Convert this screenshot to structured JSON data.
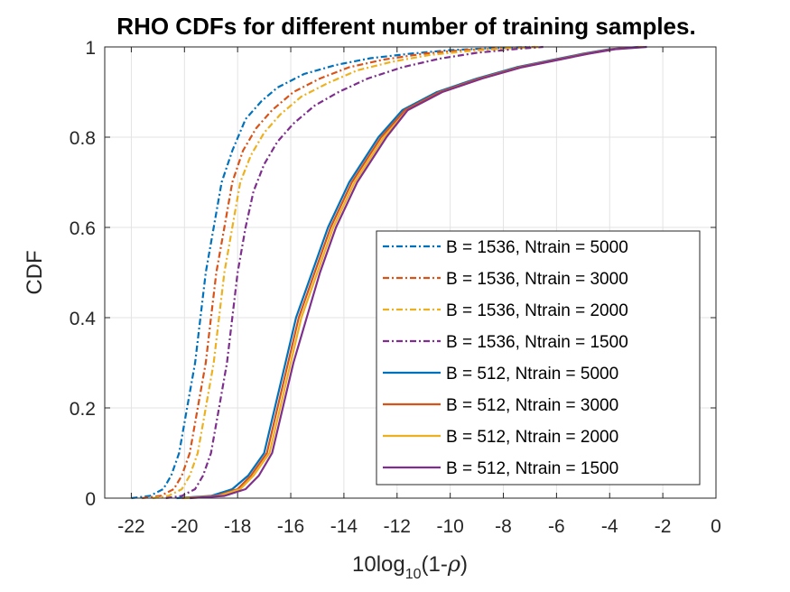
{
  "chart_data": {
    "type": "line",
    "title": "RHO CDFs for different number of training samples.",
    "xlabel": {
      "main": "10log",
      "sub": "10",
      "rest": "(1-",
      "rho": "ρ",
      "close": ")"
    },
    "ylabel": "CDF",
    "xlim": [
      -23,
      0
    ],
    "ylim": [
      0,
      1
    ],
    "xticks": [
      -22,
      -20,
      -18,
      -16,
      -14,
      -12,
      -10,
      -8,
      -6,
      -4,
      -2,
      0
    ],
    "xtick_labels": [
      "-22",
      "-20",
      "-18",
      "-16",
      "-14",
      "-12",
      "-10",
      "-8",
      "-6",
      "-4",
      "-2",
      "0"
    ],
    "yticks": [
      0,
      0.2,
      0.4,
      0.6,
      0.8,
      1
    ],
    "ytick_labels": [
      "0",
      "0.2",
      "0.4",
      "0.6",
      "0.8",
      "1"
    ],
    "grid": true,
    "legend_position": "bottom-right",
    "series": [
      {
        "name": "B = 1536, Ntrain = 5000",
        "color": "#0072BD",
        "dash": "dashdot",
        "points": [
          [
            -22.0,
            0
          ],
          [
            -21.3,
            0.005
          ],
          [
            -20.8,
            0.02
          ],
          [
            -20.5,
            0.05
          ],
          [
            -20.2,
            0.1
          ],
          [
            -19.9,
            0.2
          ],
          [
            -19.6,
            0.3
          ],
          [
            -19.4,
            0.4
          ],
          [
            -19.2,
            0.5
          ],
          [
            -18.9,
            0.6
          ],
          [
            -18.6,
            0.7
          ],
          [
            -18.2,
            0.77
          ],
          [
            -17.7,
            0.84
          ],
          [
            -17.1,
            0.88
          ],
          [
            -16.5,
            0.91
          ],
          [
            -15.5,
            0.94
          ],
          [
            -14.3,
            0.96
          ],
          [
            -13.0,
            0.975
          ],
          [
            -11.5,
            0.985
          ],
          [
            -10.0,
            0.993
          ],
          [
            -8.5,
            0.997
          ],
          [
            -7.0,
            1.0
          ]
        ]
      },
      {
        "name": "B = 1536, Ntrain = 3000",
        "color": "#D95319",
        "dash": "dashdot",
        "points": [
          [
            -21.6,
            0
          ],
          [
            -20.9,
            0.005
          ],
          [
            -20.4,
            0.02
          ],
          [
            -20.1,
            0.05
          ],
          [
            -19.8,
            0.1
          ],
          [
            -19.5,
            0.2
          ],
          [
            -19.2,
            0.3
          ],
          [
            -19.0,
            0.4
          ],
          [
            -18.8,
            0.5
          ],
          [
            -18.5,
            0.6
          ],
          [
            -18.2,
            0.7
          ],
          [
            -17.8,
            0.77
          ],
          [
            -17.3,
            0.82
          ],
          [
            -16.7,
            0.86
          ],
          [
            -15.9,
            0.9
          ],
          [
            -14.9,
            0.93
          ],
          [
            -13.8,
            0.955
          ],
          [
            -12.5,
            0.972
          ],
          [
            -11.0,
            0.985
          ],
          [
            -9.5,
            0.993
          ],
          [
            -8.0,
            0.997
          ],
          [
            -6.8,
            1.0
          ]
        ]
      },
      {
        "name": "B = 1536, Ntrain = 2000",
        "color": "#EDB120",
        "dash": "dashdot",
        "points": [
          [
            -21.2,
            0
          ],
          [
            -20.6,
            0.005
          ],
          [
            -20.1,
            0.02
          ],
          [
            -19.8,
            0.05
          ],
          [
            -19.5,
            0.1
          ],
          [
            -19.2,
            0.2
          ],
          [
            -18.9,
            0.3
          ],
          [
            -18.7,
            0.4
          ],
          [
            -18.5,
            0.5
          ],
          [
            -18.2,
            0.6
          ],
          [
            -17.9,
            0.7
          ],
          [
            -17.5,
            0.76
          ],
          [
            -17.0,
            0.81
          ],
          [
            -16.4,
            0.85
          ],
          [
            -15.6,
            0.89
          ],
          [
            -14.6,
            0.92
          ],
          [
            -13.5,
            0.948
          ],
          [
            -12.2,
            0.967
          ],
          [
            -10.8,
            0.982
          ],
          [
            -9.3,
            0.991
          ],
          [
            -7.8,
            0.997
          ],
          [
            -6.6,
            1.0
          ]
        ]
      },
      {
        "name": "B = 1536, Ntrain = 1500",
        "color": "#7E2F8E",
        "dash": "dashdot",
        "points": [
          [
            -20.7,
            0
          ],
          [
            -20.1,
            0.005
          ],
          [
            -19.6,
            0.02
          ],
          [
            -19.3,
            0.05
          ],
          [
            -19.0,
            0.1
          ],
          [
            -18.7,
            0.2
          ],
          [
            -18.4,
            0.3
          ],
          [
            -18.2,
            0.4
          ],
          [
            -18.0,
            0.5
          ],
          [
            -17.7,
            0.6
          ],
          [
            -17.4,
            0.68
          ],
          [
            -17.0,
            0.74
          ],
          [
            -16.5,
            0.79
          ],
          [
            -15.9,
            0.83
          ],
          [
            -15.1,
            0.87
          ],
          [
            -14.2,
            0.9
          ],
          [
            -13.1,
            0.93
          ],
          [
            -11.8,
            0.955
          ],
          [
            -10.4,
            0.974
          ],
          [
            -9.0,
            0.987
          ],
          [
            -7.6,
            0.995
          ],
          [
            -6.5,
            1.0
          ]
        ]
      },
      {
        "name": "B = 512, Ntrain = 5000",
        "color": "#0072BD",
        "dash": "solid",
        "points": [
          [
            -20.3,
            0
          ],
          [
            -19.0,
            0.005
          ],
          [
            -18.2,
            0.02
          ],
          [
            -17.6,
            0.05
          ],
          [
            -17.0,
            0.1
          ],
          [
            -16.6,
            0.2
          ],
          [
            -16.2,
            0.3
          ],
          [
            -15.8,
            0.4
          ],
          [
            -15.2,
            0.5
          ],
          [
            -14.6,
            0.6
          ],
          [
            -13.8,
            0.7
          ],
          [
            -12.7,
            0.8
          ],
          [
            -11.8,
            0.86
          ],
          [
            -10.5,
            0.9
          ],
          [
            -9.0,
            0.93
          ],
          [
            -7.5,
            0.955
          ],
          [
            -6.0,
            0.973
          ],
          [
            -5.0,
            0.985
          ],
          [
            -4.0,
            0.995
          ],
          [
            -2.9,
            1.0
          ]
        ]
      },
      {
        "name": "B = 512, Ntrain = 3000",
        "color": "#D95319",
        "dash": "solid",
        "points": [
          [
            -20.1,
            0
          ],
          [
            -18.8,
            0.005
          ],
          [
            -18.0,
            0.02
          ],
          [
            -17.5,
            0.05
          ],
          [
            -16.9,
            0.1
          ],
          [
            -16.5,
            0.2
          ],
          [
            -16.1,
            0.3
          ],
          [
            -15.7,
            0.4
          ],
          [
            -15.1,
            0.5
          ],
          [
            -14.5,
            0.6
          ],
          [
            -13.7,
            0.7
          ],
          [
            -12.6,
            0.8
          ],
          [
            -11.7,
            0.86
          ],
          [
            -10.4,
            0.9
          ],
          [
            -8.9,
            0.93
          ],
          [
            -7.4,
            0.955
          ],
          [
            -5.9,
            0.973
          ],
          [
            -4.9,
            0.985
          ],
          [
            -3.9,
            0.995
          ],
          [
            -2.8,
            1.0
          ]
        ]
      },
      {
        "name": "B = 512, Ntrain = 2000",
        "color": "#EDB120",
        "dash": "solid",
        "points": [
          [
            -20.0,
            0
          ],
          [
            -18.7,
            0.005
          ],
          [
            -17.9,
            0.02
          ],
          [
            -17.4,
            0.05
          ],
          [
            -16.8,
            0.1
          ],
          [
            -16.4,
            0.2
          ],
          [
            -16.0,
            0.3
          ],
          [
            -15.6,
            0.4
          ],
          [
            -15.0,
            0.5
          ],
          [
            -14.4,
            0.6
          ],
          [
            -13.6,
            0.7
          ],
          [
            -12.5,
            0.8
          ],
          [
            -11.6,
            0.86
          ],
          [
            -10.3,
            0.9
          ],
          [
            -8.8,
            0.93
          ],
          [
            -7.3,
            0.955
          ],
          [
            -5.8,
            0.973
          ],
          [
            -4.8,
            0.985
          ],
          [
            -3.8,
            0.995
          ],
          [
            -2.7,
            1.0
          ]
        ]
      },
      {
        "name": "B = 512, Ntrain = 1500",
        "color": "#7E2F8E",
        "dash": "solid",
        "points": [
          [
            -19.8,
            0
          ],
          [
            -18.5,
            0.005
          ],
          [
            -17.7,
            0.02
          ],
          [
            -17.2,
            0.05
          ],
          [
            -16.7,
            0.1
          ],
          [
            -16.3,
            0.2
          ],
          [
            -15.9,
            0.3
          ],
          [
            -15.4,
            0.4
          ],
          [
            -14.9,
            0.5
          ],
          [
            -14.3,
            0.6
          ],
          [
            -13.5,
            0.7
          ],
          [
            -12.4,
            0.8
          ],
          [
            -11.6,
            0.86
          ],
          [
            -10.3,
            0.9
          ],
          [
            -8.8,
            0.93
          ],
          [
            -7.3,
            0.955
          ],
          [
            -5.8,
            0.973
          ],
          [
            -4.8,
            0.985
          ],
          [
            -3.8,
            0.995
          ],
          [
            -2.6,
            1.0
          ]
        ]
      }
    ]
  }
}
